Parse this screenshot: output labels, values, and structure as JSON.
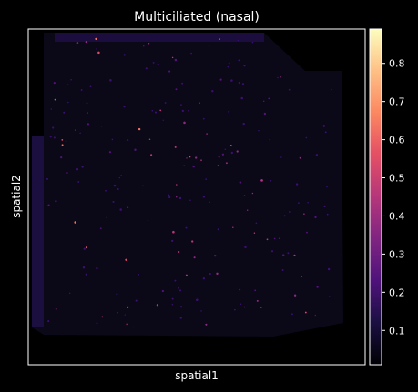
{
  "chart_data": {
    "type": "heatmap",
    "subtype": "spatial-scatter",
    "title": "Multiciliated (nasal)",
    "xlabel": "spatial1",
    "ylabel": "spatial2",
    "colormap": "magma",
    "colorbar": {
      "ticks": [
        0.1,
        0.2,
        0.3,
        0.4,
        0.5,
        0.6,
        0.7,
        0.8
      ],
      "tick_labels": [
        "0.1",
        "0.2",
        "0.3",
        "0.4",
        "0.5",
        "0.6",
        "0.7",
        "0.8"
      ],
      "range": [
        0.01,
        0.89
      ]
    },
    "axes_ticks": "none",
    "grid": false,
    "colors": {
      "background": "#000000",
      "axes_frame": "#ffffff",
      "tissue_low": "#0a0715",
      "text": "#ffffff"
    }
  }
}
